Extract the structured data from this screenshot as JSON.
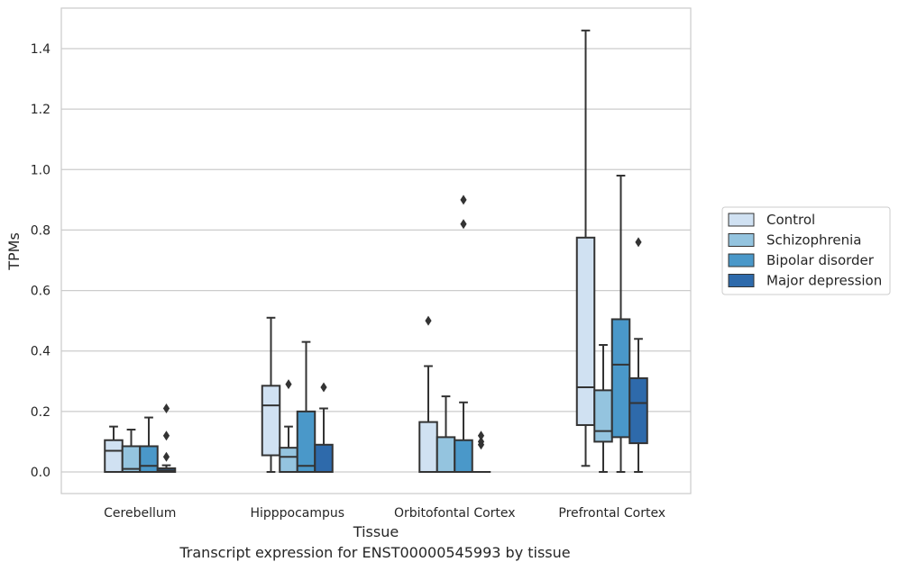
{
  "caption": "Transcript expression for ENST00000545993 by tissue",
  "colors": {
    "Control": "#d0e1f2",
    "Schizophrenia": "#94c4df",
    "Bipolar disorder": "#4a98c9",
    "Major depression": "#2e6aab",
    "grid": "#cccccc",
    "line": "#333333"
  },
  "chart_data": {
    "type": "box",
    "xlabel": "Tissue",
    "ylabel": "TPMs",
    "ylim": [
      -0.07,
      1.54
    ],
    "yticks": [
      0.0,
      0.2,
      0.4,
      0.6,
      0.8,
      1.0,
      1.2,
      1.4
    ],
    "ytick_labels": [
      "0.0",
      "0.2",
      "0.4",
      "0.6",
      "0.8",
      "1.0",
      "1.2",
      "1.4"
    ],
    "grid": "horizontal",
    "legend_position": "right",
    "categories": [
      "Cerebellum",
      "Hipppocampus",
      "Orbitofontal Cortex",
      "Prefrontal Cortex"
    ],
    "series": [
      {
        "name": "Control",
        "boxes": [
          {
            "whislo": 0.0,
            "q1": 0.0,
            "med": 0.07,
            "q3": 0.105,
            "whishi": 0.15,
            "fliers": []
          },
          {
            "whislo": 0.0,
            "q1": 0.055,
            "med": 0.22,
            "q3": 0.285,
            "whishi": 0.51,
            "fliers": []
          },
          {
            "whislo": 0.0,
            "q1": 0.0,
            "med": 0.0,
            "q3": 0.165,
            "whishi": 0.35,
            "fliers": [
              0.5
            ]
          },
          {
            "whislo": 0.02,
            "q1": 0.155,
            "med": 0.28,
            "q3": 0.775,
            "whishi": 1.46,
            "fliers": []
          }
        ]
      },
      {
        "name": "Schizophrenia",
        "boxes": [
          {
            "whislo": 0.0,
            "q1": 0.0,
            "med": 0.01,
            "q3": 0.085,
            "whishi": 0.14,
            "fliers": []
          },
          {
            "whislo": 0.0,
            "q1": 0.0,
            "med": 0.05,
            "q3": 0.08,
            "whishi": 0.15,
            "fliers": [
              0.29
            ]
          },
          {
            "whislo": 0.0,
            "q1": 0.0,
            "med": 0.0,
            "q3": 0.115,
            "whishi": 0.25,
            "fliers": []
          },
          {
            "whislo": 0.0,
            "q1": 0.1,
            "med": 0.135,
            "q3": 0.27,
            "whishi": 0.42,
            "fliers": []
          }
        ]
      },
      {
        "name": "Bipolar disorder",
        "boxes": [
          {
            "whislo": 0.0,
            "q1": 0.0,
            "med": 0.02,
            "q3": 0.085,
            "whishi": 0.18,
            "fliers": []
          },
          {
            "whislo": 0.0,
            "q1": 0.0,
            "med": 0.02,
            "q3": 0.2,
            "whishi": 0.43,
            "fliers": []
          },
          {
            "whislo": 0.0,
            "q1": 0.0,
            "med": 0.0,
            "q3": 0.105,
            "whishi": 0.23,
            "fliers": [
              0.82,
              0.9
            ]
          },
          {
            "whislo": 0.0,
            "q1": 0.115,
            "med": 0.355,
            "q3": 0.505,
            "whishi": 0.98,
            "fliers": []
          }
        ]
      },
      {
        "name": "Major depression",
        "boxes": [
          {
            "whislo": 0.0,
            "q1": 0.0,
            "med": 0.005,
            "q3": 0.012,
            "whishi": 0.022,
            "fliers": [
              0.05,
              0.12,
              0.21
            ]
          },
          {
            "whislo": 0.0,
            "q1": 0.0,
            "med": 0.0,
            "q3": 0.09,
            "whishi": 0.21,
            "fliers": [
              0.28
            ]
          },
          {
            "whislo": 0.0,
            "q1": 0.0,
            "med": 0.0,
            "q3": 0.0,
            "whishi": 0.0,
            "fliers": [
              0.09,
              0.1,
              0.12
            ]
          },
          {
            "whislo": 0.0,
            "q1": 0.095,
            "med": 0.228,
            "q3": 0.31,
            "whishi": 0.44,
            "fliers": [
              0.76
            ]
          }
        ]
      }
    ]
  }
}
